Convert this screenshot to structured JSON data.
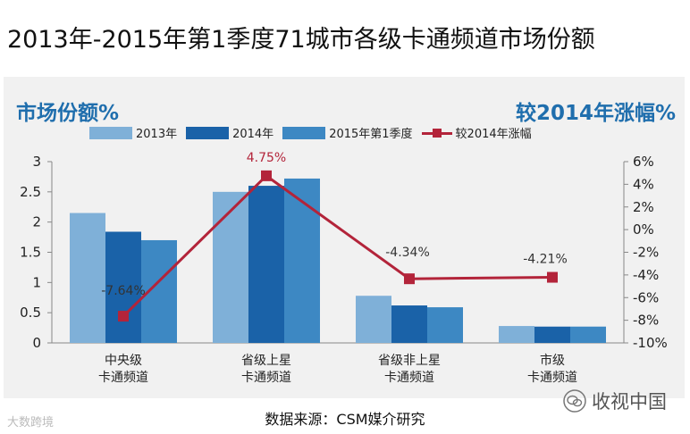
{
  "page": {
    "title": "2013年-2015年第1季度71城市各级卡通频道市场份额",
    "source": "数据来源：CSM媒介研究",
    "watermark_left": "大数跨境",
    "watermark_right": "收视中国"
  },
  "chart_data": {
    "type": "bar",
    "left_axis_label": "市场份额%",
    "right_axis_label": "较2014年涨幅%",
    "categories": [
      [
        "中央级",
        "卡通频道"
      ],
      [
        "省级上星",
        "卡通频道"
      ],
      [
        "省级非上星",
        "卡通频道"
      ],
      [
        "市级",
        "卡通频道"
      ]
    ],
    "series": [
      {
        "name": "2013年",
        "color": "#7fb0d8",
        "values": [
          2.15,
          2.5,
          0.78,
          0.28
        ]
      },
      {
        "name": "2014年",
        "color": "#1a62a8",
        "values": [
          1.84,
          2.6,
          0.62,
          0.27
        ]
      },
      {
        "name": "2015年第1季度",
        "color": "#3d88c3",
        "values": [
          1.7,
          2.72,
          0.59,
          0.27
        ]
      }
    ],
    "line_series": {
      "name": "较2014年涨幅",
      "color": "#b3243a",
      "values": [
        -7.64,
        4.75,
        -4.34,
        -4.21
      ],
      "labels": [
        "-7.64%",
        "4.75%",
        "-4.34%",
        "-4.21%"
      ]
    },
    "ylim_left": [
      0,
      3
    ],
    "yticks_left": [
      "0",
      "0.5",
      "1",
      "1.5",
      "2",
      "2.5",
      "3"
    ],
    "ylim_right": [
      -10,
      6
    ],
    "yticks_right": [
      "-10%",
      "-8%",
      "-6%",
      "-4%",
      "-2%",
      "0%",
      "2%",
      "4%",
      "6%"
    ],
    "legend_position": "top"
  }
}
